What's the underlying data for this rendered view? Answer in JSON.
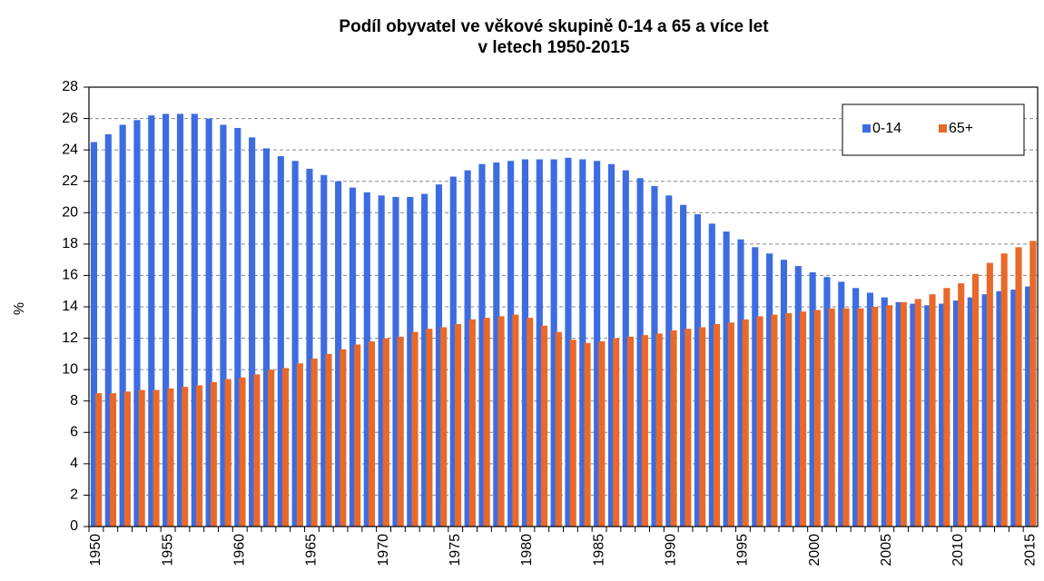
{
  "chart_data": {
    "type": "bar",
    "title": "Podíl obyvatel ve věkové skupině 0-14 a 65 a více let",
    "subtitle": "v letech 1950-2015",
    "y_label": "%",
    "categories": [
      "1950",
      null,
      null,
      null,
      null,
      "1955",
      null,
      null,
      null,
      null,
      "1960",
      null,
      null,
      null,
      null,
      "1965",
      null,
      null,
      null,
      null,
      "1970",
      null,
      null,
      null,
      null,
      "1975",
      null,
      null,
      null,
      null,
      "1980",
      null,
      null,
      null,
      null,
      "1985",
      null,
      null,
      null,
      null,
      "1990",
      null,
      null,
      null,
      null,
      "1995",
      null,
      null,
      null,
      null,
      "2000",
      null,
      null,
      null,
      null,
      "2005",
      null,
      null,
      null,
      null,
      "2010",
      null,
      null,
      null,
      null,
      "2015"
    ],
    "series": [
      {
        "name": "0-14",
        "color": "#3d6ce0",
        "values": [
          24.5,
          25.0,
          25.6,
          25.9,
          26.2,
          26.3,
          26.3,
          26.3,
          26.0,
          25.6,
          25.4,
          24.8,
          24.1,
          23.6,
          23.3,
          22.8,
          22.4,
          22.0,
          21.6,
          21.3,
          21.1,
          21.0,
          21.0,
          21.2,
          21.8,
          22.3,
          22.7,
          23.1,
          23.2,
          23.3,
          23.4,
          23.4,
          23.4,
          23.5,
          23.4,
          23.3,
          23.1,
          22.7,
          22.2,
          21.7,
          21.1,
          20.5,
          19.9,
          19.3,
          18.8,
          18.3,
          17.8,
          17.4,
          17.0,
          16.6,
          16.2,
          15.9,
          15.6,
          15.2,
          14.9,
          14.6,
          14.3,
          14.2,
          14.1,
          14.2,
          14.4,
          14.6,
          14.8,
          15.0,
          15.1,
          15.3
        ]
      },
      {
        "name": "65+",
        "color": "#e8692a",
        "values": [
          8.5,
          8.5,
          8.6,
          8.7,
          8.7,
          8.8,
          8.9,
          9.0,
          9.2,
          9.4,
          9.5,
          9.7,
          10.0,
          10.1,
          10.4,
          10.7,
          11.0,
          11.3,
          11.6,
          11.8,
          12.0,
          12.1,
          12.4,
          12.6,
          12.7,
          12.9,
          13.2,
          13.3,
          13.4,
          13.5,
          13.3,
          12.8,
          12.4,
          11.9,
          11.7,
          11.8,
          12.0,
          12.1,
          12.2,
          12.3,
          12.5,
          12.6,
          12.7,
          12.9,
          13.0,
          13.2,
          13.4,
          13.5,
          13.6,
          13.7,
          13.8,
          13.9,
          13.9,
          13.9,
          14.0,
          14.1,
          14.3,
          14.5,
          14.8,
          15.2,
          15.5,
          16.1,
          16.8,
          17.4,
          17.8,
          18.2
        ]
      }
    ],
    "ylim": [
      0,
      28
    ],
    "yticks": [
      0,
      2,
      4,
      6,
      8,
      10,
      12,
      14,
      16,
      18,
      20,
      22,
      24,
      26,
      28
    ],
    "grid": true,
    "legend": "upper right"
  }
}
